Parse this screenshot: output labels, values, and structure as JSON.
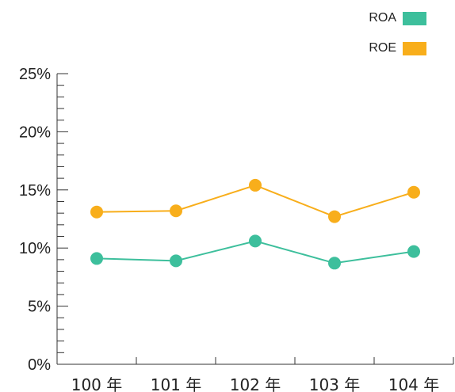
{
  "chart_data": {
    "type": "line",
    "categories": [
      "100 年",
      "101 年",
      "102 年",
      "103 年",
      "104 年"
    ],
    "series": [
      {
        "name": "ROA",
        "color": "#3dbf9c",
        "values": [
          9.1,
          8.9,
          10.6,
          8.7,
          9.7
        ]
      },
      {
        "name": "ROE",
        "color": "#f8ae1b",
        "values": [
          13.1,
          13.2,
          15.4,
          12.7,
          14.8
        ]
      }
    ],
    "ylim": [
      0,
      25
    ],
    "yticks": [
      "0%",
      "5%",
      "10%",
      "15%",
      "20%",
      "25%"
    ],
    "ytick_values": [
      0,
      5,
      10,
      15,
      20,
      25
    ],
    "minor_tick_step": 1,
    "legend_position": "top-right",
    "grid": false
  }
}
